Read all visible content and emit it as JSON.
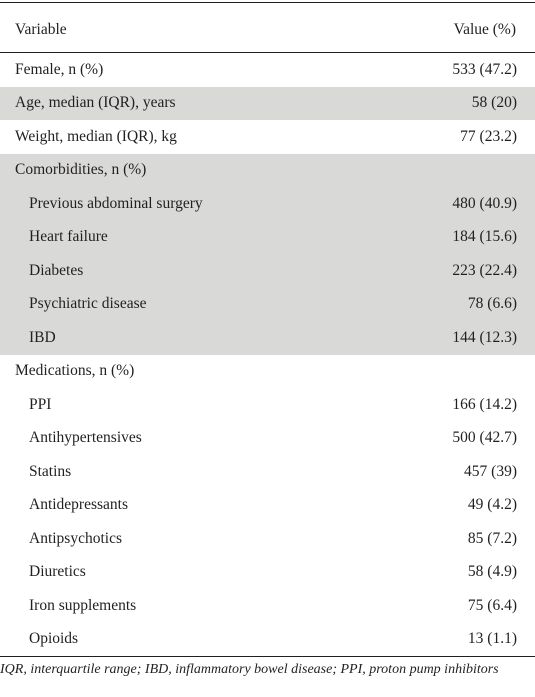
{
  "table": {
    "columns": [
      "Variable",
      "Value (%)"
    ],
    "rows": [
      {
        "label": "Female, n (%)",
        "value": "533 (47.2)"
      },
      {
        "label": "Age, median (IQR), years",
        "value": "58 (20)"
      },
      {
        "label": "Weight, median (IQR), kg",
        "value": "77 (23.2)"
      },
      {
        "label": "Comorbidities, n (%)",
        "value": ""
      },
      {
        "label": "Previous abdominal surgery",
        "value": "480 (40.9)"
      },
      {
        "label": "Heart failure",
        "value": "184 (15.6)"
      },
      {
        "label": "Diabetes",
        "value": "223 (22.4)"
      },
      {
        "label": "Psychiatric disease",
        "value": "78 (6.6)"
      },
      {
        "label": "IBD",
        "value": "144 (12.3)"
      },
      {
        "label": "Medications, n (%)",
        "value": ""
      },
      {
        "label": "PPI",
        "value": "166 (14.2)"
      },
      {
        "label": "Antihypertensives",
        "value": "500 (42.7)"
      },
      {
        "label": "Statins",
        "value": "457 (39)"
      },
      {
        "label": "Antidepressants",
        "value": "49 (4.2)"
      },
      {
        "label": "Antipsychotics",
        "value": "85 (7.2)"
      },
      {
        "label": "Diuretics",
        "value": "58 (4.9)"
      },
      {
        "label": "Iron supplements",
        "value": "75 (6.4)"
      },
      {
        "label": "Opioids",
        "value": "13 (1.1)"
      }
    ]
  },
  "footnote": "IQR, interquartile range; IBD, inflammatory bowel disease; PPI, proton pump inhibitors",
  "colors": {
    "shade": "#d9d9d8",
    "text": "#231f20",
    "rule": "#231f20"
  }
}
